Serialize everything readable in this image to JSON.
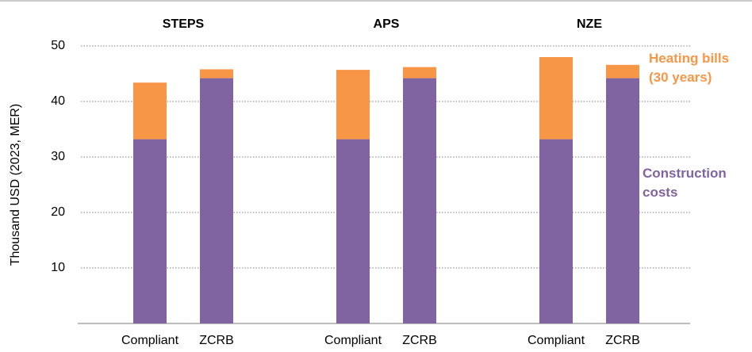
{
  "chart_data": {
    "type": "stacked_bar",
    "ylabel": "Thousand USD (2023, MER)",
    "groups": [
      "STEPS",
      "APS",
      "NZE"
    ],
    "categories": [
      "Compliant",
      "ZCRB",
      "Compliant",
      "ZCRB",
      "Compliant",
      "ZCRB"
    ],
    "series": [
      {
        "name": "Construction costs",
        "color": "#8064a2",
        "values": [
          33.2,
          44.2,
          33.2,
          44.2,
          33.2,
          44.2
        ]
      },
      {
        "name": "Heating bills (30 years)",
        "color": "#f79646",
        "values": [
          10.2,
          1.6,
          12.5,
          2.0,
          14.8,
          2.4
        ]
      }
    ],
    "ylim": [
      0,
      50
    ],
    "yticks": [
      10,
      20,
      30,
      40,
      50
    ],
    "grid": true
  }
}
